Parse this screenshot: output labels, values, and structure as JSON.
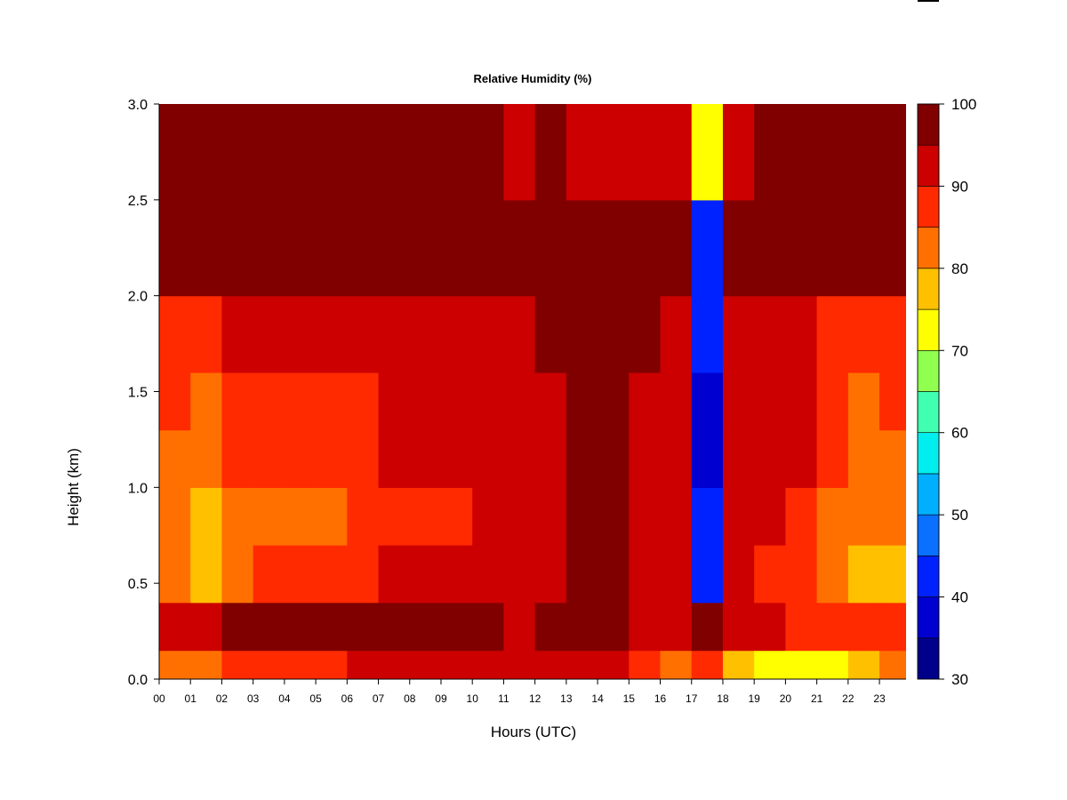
{
  "chart_data": {
    "type": "heatmap",
    "title": "Relative Humidity (%)",
    "xlabel": "Hours (UTC)",
    "ylabel": "Height (km)",
    "x_tick_labels": [
      "00",
      "01",
      "02",
      "03",
      "04",
      "05",
      "06",
      "07",
      "08",
      "09",
      "10",
      "11",
      "12",
      "13",
      "14",
      "15",
      "16",
      "17",
      "18",
      "19",
      "20",
      "21",
      "22",
      "23"
    ],
    "x_range": [
      0,
      23.85
    ],
    "y_ticks": [
      0.0,
      0.5,
      1.0,
      1.5,
      2.0,
      2.5,
      3.0
    ],
    "y_tick_labels": [
      "0.0",
      "0.5",
      "1.0",
      "1.5",
      "2.0",
      "2.5",
      "3.0"
    ],
    "ylim": [
      0,
      3.0
    ],
    "colorbar": {
      "levels": [
        30,
        35,
        40,
        45,
        50,
        55,
        60,
        65,
        70,
        75,
        80,
        85,
        90,
        95,
        100
      ],
      "tick_values": [
        30,
        40,
        50,
        60,
        70,
        80,
        90,
        100
      ],
      "tick_labels": [
        "30",
        "40",
        "50",
        "60",
        "70",
        "80",
        "90",
        "100"
      ],
      "colors": [
        "#00008b",
        "#0000d0",
        "#0022ff",
        "#0a70ff",
        "#00b0ff",
        "#00eeee",
        "#40ffb0",
        "#90ff50",
        "#ffff00",
        "#ffc000",
        "#ff7000",
        "#ff2a00",
        "#cc0000",
        "#800000"
      ]
    },
    "hours": [
      0,
      1,
      2,
      3,
      4,
      5,
      6,
      7,
      8,
      9,
      10,
      11,
      12,
      13,
      14,
      15,
      16,
      17,
      18,
      19,
      20,
      21,
      22,
      23
    ],
    "heights_km": [
      0.05,
      0.25,
      0.55,
      0.85,
      1.15,
      1.45,
      1.75,
      2.25,
      2.75
    ],
    "values": [
      [
        84,
        93,
        80,
        80,
        84,
        85,
        89,
        97,
        98
      ],
      [
        83,
        93,
        78,
        77,
        84,
        84,
        89,
        98,
        98
      ],
      [
        87,
        96,
        84,
        82,
        85,
        85,
        90,
        98,
        99
      ],
      [
        88,
        97,
        86,
        83,
        86,
        85,
        90,
        98,
        99
      ],
      [
        89,
        97,
        86,
        83,
        86,
        85,
        90,
        98,
        99
      ],
      [
        89,
        97,
        86,
        83,
        86,
        85,
        90,
        98,
        99
      ],
      [
        90,
        97,
        89,
        86,
        88,
        88,
        92,
        98,
        99
      ],
      [
        90,
        98,
        91,
        88,
        90,
        90,
        93,
        98,
        98
      ],
      [
        90,
        98,
        91,
        88,
        90,
        90,
        93,
        98,
        98
      ],
      [
        90,
        98,
        91,
        88,
        90,
        90,
        93,
        98,
        98
      ],
      [
        91,
        98,
        92,
        90,
        91,
        91,
        94,
        98,
        96
      ],
      [
        90,
        94,
        92,
        91,
        92,
        92,
        94,
        98,
        94
      ],
      [
        91,
        97,
        93,
        93,
        93,
        93,
        95,
        98,
        95
      ],
      [
        91,
        98,
        97,
        96,
        96,
        96,
        96,
        98,
        93
      ],
      [
        90,
        97,
        95,
        95,
        95,
        95,
        96,
        98,
        93
      ],
      [
        86,
        94,
        93,
        93,
        93,
        93,
        95,
        98,
        93
      ],
      [
        82,
        93,
        92,
        92,
        93,
        93,
        94,
        98,
        93
      ],
      [
        88,
        96,
        44,
        40,
        38,
        38,
        40,
        42,
        70
      ],
      [
        78,
        91,
        90,
        91,
        93,
        93,
        94,
        98,
        94
      ],
      [
        72,
        90,
        88,
        90,
        92,
        92,
        93,
        98,
        95
      ],
      [
        70,
        88,
        85,
        88,
        91,
        90,
        92,
        98,
        96
      ],
      [
        73,
        86,
        80,
        82,
        86,
        86,
        89,
        97,
        98
      ],
      [
        78,
        88,
        78,
        80,
        84,
        84,
        88,
        97,
        98
      ],
      [
        82,
        89,
        78,
        80,
        84,
        85,
        89,
        97,
        98
      ]
    ]
  }
}
